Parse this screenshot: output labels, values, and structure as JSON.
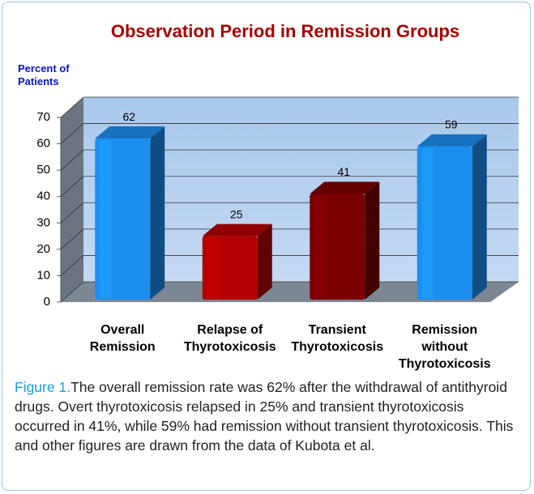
{
  "chart_data": {
    "type": "bar3d",
    "title": "Observation Period in Remission Groups",
    "y_label": "Percent of\nPatients",
    "categories": [
      "Overall\nRemission",
      "Relapse of\nThyrotoxicosis",
      "Transient\nThyrotoxicosis",
      "Remission\nwithout\nThyrotoxicosis"
    ],
    "values": [
      62,
      25,
      41,
      59
    ],
    "colors": [
      "#1b8ef0",
      "#b30000",
      "#7a0000",
      "#1b8ef0"
    ],
    "ylim": [
      0,
      70
    ],
    "yticks": [
      0,
      10,
      20,
      30,
      40,
      50,
      60,
      70
    ],
    "grid": true
  },
  "caption": {
    "label": "Figure 1.",
    "text": "The overall remission rate was 62% after the withdrawal of antithyroid drugs. Overt thyrotoxicosis relapsed in 25% and transient thyrotoxicosis occurred in 41%, while 59% had remission without transient thyrotoxicosis. This and other figures are drawn from the data of Kubota et al."
  }
}
